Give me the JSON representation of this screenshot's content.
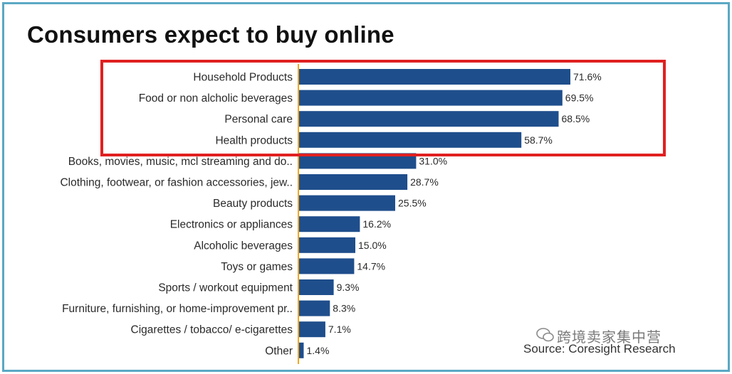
{
  "title": "Consumers expect to buy online",
  "source": "Source: Coresight Research",
  "watermark": "跨境卖家集中营",
  "colors": {
    "bar": "#1f4e8c",
    "axis": "#f0a81e",
    "highlight": "#e02020",
    "frame": "#5aa8c4"
  },
  "chart_data": {
    "type": "bar",
    "orientation": "horizontal",
    "title": "Consumers expect to buy online",
    "xlabel": "",
    "ylabel": "",
    "xlim": [
      0,
      100
    ],
    "unit": "%",
    "categories": [
      "Household Products",
      "Food or non alcholic beverages",
      "Personal care",
      "Health products",
      "Books, movies, music, mcl streaming and do..",
      "Clothing, footwear, or fashion accessories, jew..",
      "Beauty products",
      "Electronics or appliances",
      "Alcoholic beverages",
      "Toys or games",
      "Sports / workout equipment",
      "Furniture, furnishing, or home-improvement pr..",
      "Cigarettes / tobacco/ e-cigarettes",
      "Other"
    ],
    "values": [
      71.6,
      69.5,
      68.5,
      58.7,
      31.0,
      28.7,
      25.5,
      16.2,
      15.0,
      14.7,
      9.3,
      8.3,
      7.1,
      1.4
    ],
    "value_labels": [
      "71.6%",
      "69.5%",
      "68.5%",
      "58.7%",
      "31.0%",
      "28.7%",
      "25.5%",
      "16.2%",
      "15.0%",
      "14.7%",
      "9.3%",
      "8.3%",
      "7.1%",
      "1.4%"
    ],
    "highlighted": [
      "Household Products",
      "Food or non alcholic beverages",
      "Personal care",
      "Health products"
    ]
  }
}
